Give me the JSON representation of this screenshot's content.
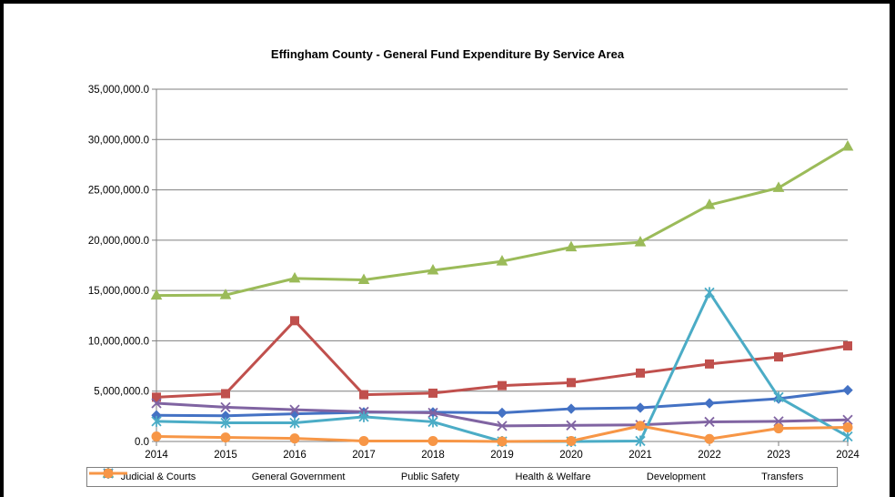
{
  "chart_data": {
    "type": "line",
    "title": "Effingham County - General Fund Expenditure By Service Area",
    "xlabel": "",
    "ylabel": "",
    "categories": [
      "2014",
      "2015",
      "2016",
      "2017",
      "2018",
      "2019",
      "2020",
      "2021",
      "2022",
      "2023",
      "2024"
    ],
    "ylim": [
      0,
      35000000
    ],
    "yticks": [
      0,
      5000000,
      10000000,
      15000000,
      20000000,
      25000000,
      30000000,
      35000000
    ],
    "ytick_labels": [
      "0.0",
      "5,000,000.0",
      "10,000,000.0",
      "15,000,000.0",
      "20,000,000.0",
      "25,000,000.0",
      "30,000,000.0",
      "35,000,000.0"
    ],
    "grid": "horizontal",
    "legend_position": "bottom",
    "series": [
      {
        "name": "Judicial & Courts",
        "color": "#4472C4",
        "marker": "diamond",
        "values": [
          2600000,
          2550000,
          2750000,
          2900000,
          2900000,
          2850000,
          3250000,
          3350000,
          3800000,
          4250000,
          5100000
        ]
      },
      {
        "name": "General Government",
        "color": "#C0504D",
        "marker": "square",
        "values": [
          4400000,
          4750000,
          12000000,
          4650000,
          4800000,
          5550000,
          5850000,
          6800000,
          7700000,
          8400000,
          9500000
        ]
      },
      {
        "name": "Public Safety",
        "color": "#9BBB59",
        "marker": "triangle",
        "values": [
          14500000,
          14550000,
          16200000,
          16050000,
          17000000,
          17900000,
          19300000,
          19800000,
          23500000,
          25200000,
          29300000
        ]
      },
      {
        "name": "Health & Welfare",
        "color": "#8064A2",
        "marker": "x",
        "values": [
          3800000,
          3400000,
          3150000,
          2950000,
          2850000,
          1550000,
          1600000,
          1650000,
          1950000,
          2000000,
          2150000
        ]
      },
      {
        "name": "Development",
        "color": "#4BACC6",
        "marker": "star",
        "values": [
          2000000,
          1850000,
          1850000,
          2450000,
          1950000,
          0,
          0,
          50000,
          14800000,
          4400000,
          500000
        ]
      },
      {
        "name": "Transfers",
        "color": "#F79646",
        "marker": "circle",
        "values": [
          500000,
          400000,
          300000,
          50000,
          50000,
          0,
          50000,
          1550000,
          250000,
          1300000,
          1400000
        ]
      }
    ]
  }
}
